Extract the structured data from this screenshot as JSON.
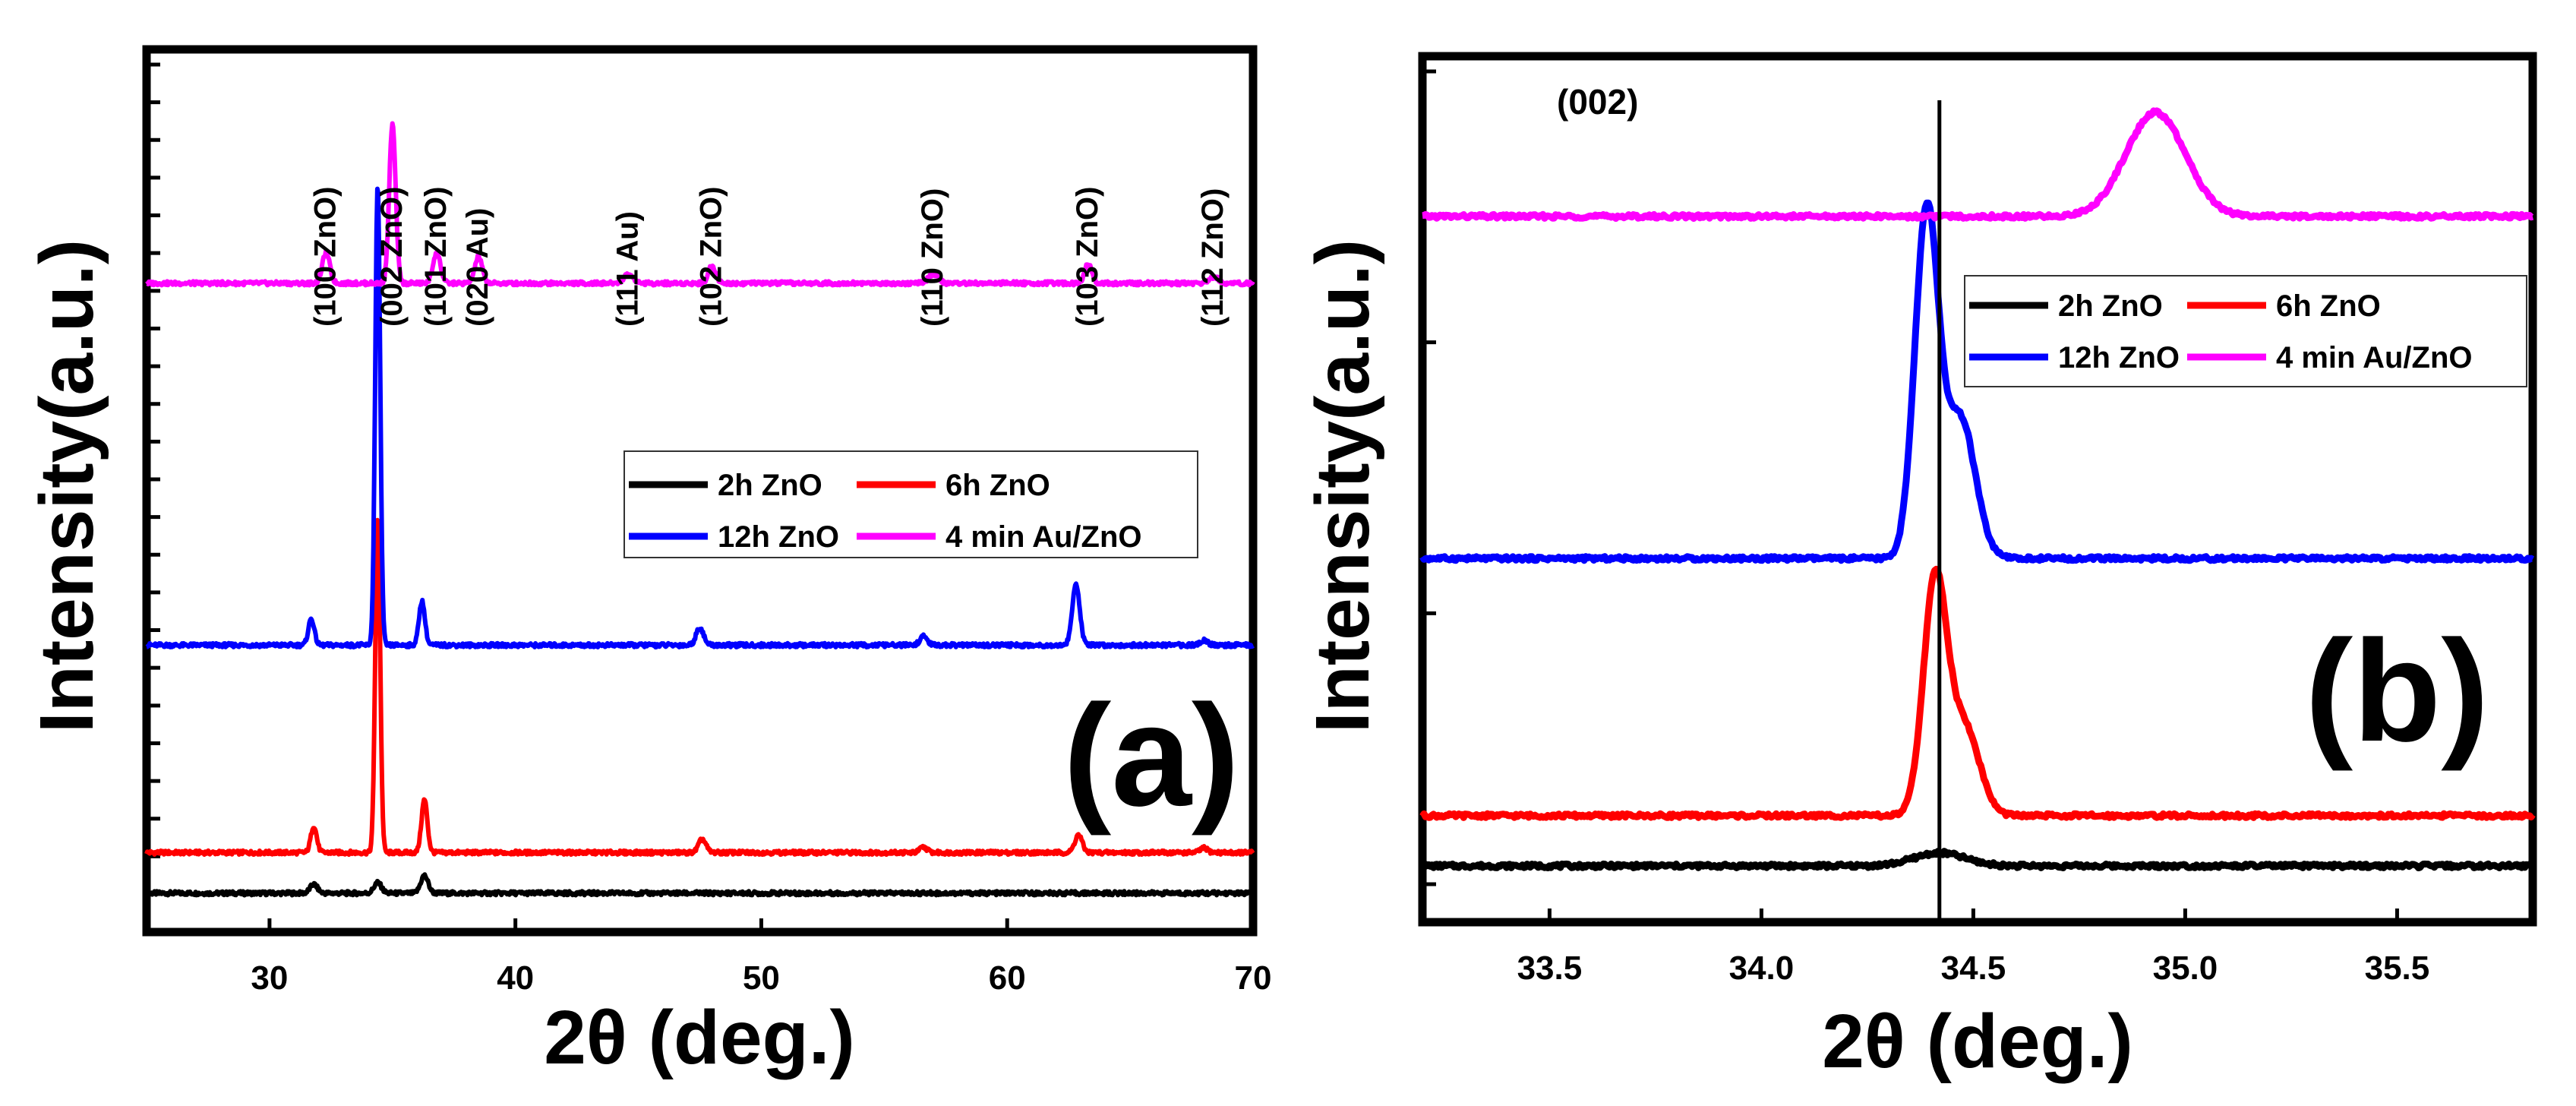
{
  "chart_data": [
    {
      "type": "line",
      "panel_label": "(a)",
      "xlabel": "2θ (deg.)",
      "ylabel": "Intensity(a.u.)",
      "xlim": [
        25,
        70
      ],
      "ylim": [
        0,
        100
      ],
      "xticks": [
        30,
        40,
        50,
        60,
        70
      ],
      "xtick_labels": [
        "30",
        "40",
        "50",
        "60",
        "70"
      ],
      "yticks_minor_count": 23,
      "series": [
        {
          "name": "2h ZnO",
          "color": "#000000",
          "baseline": 4.4,
          "peaks": [
            [
              31.8,
              1.0,
              0.15
            ],
            [
              34.4,
              1.2,
              0.15
            ],
            [
              36.3,
              2.0,
              0.15
            ]
          ]
        },
        {
          "name": "6h ZnO",
          "color": "#ff0000",
          "baseline": 9.0,
          "peaks": [
            [
              31.8,
              3.0,
              0.12
            ],
            [
              34.4,
              38.0,
              0.1
            ],
            [
              36.3,
              6.0,
              0.12
            ],
            [
              47.6,
              1.5,
              0.15
            ],
            [
              56.6,
              0.6,
              0.15
            ],
            [
              62.9,
              2.0,
              0.15
            ],
            [
              68.0,
              0.5,
              0.15
            ]
          ]
        },
        {
          "name": "12h ZnO",
          "color": "#0000ff",
          "baseline": 32.5,
          "peaks": [
            [
              31.7,
              3.0,
              0.12
            ],
            [
              34.4,
              52.0,
              0.1
            ],
            [
              36.2,
              5.0,
              0.12
            ],
            [
              47.5,
              2.0,
              0.15
            ],
            [
              56.6,
              1.0,
              0.15
            ],
            [
              62.8,
              7.0,
              0.15
            ],
            [
              68.0,
              0.6,
              0.15
            ]
          ]
        },
        {
          "name": "4 min Au/ZnO",
          "color": "#ff00ff",
          "baseline": 73.5,
          "peaks": [
            [
              32.3,
              3.5,
              0.15
            ],
            [
              35.0,
              18.0,
              0.13
            ],
            [
              36.8,
              3.5,
              0.15
            ],
            [
              38.5,
              3.0,
              0.15
            ],
            [
              44.6,
              1.0,
              0.2
            ],
            [
              48.0,
              2.0,
              0.15
            ],
            [
              57.0,
              1.0,
              0.2
            ],
            [
              63.3,
              2.2,
              0.15
            ],
            [
              68.4,
              0.7,
              0.2
            ]
          ]
        }
      ],
      "annotations": [
        {
          "text": "(100 ZnO)",
          "x": 32.3
        },
        {
          "text": "(002 ZnO)",
          "x": 35.0
        },
        {
          "text": "(101 ZnO)",
          "x": 36.8
        },
        {
          "text": "(020 Au)",
          "x": 38.5
        },
        {
          "text": "(111 Au)",
          "x": 44.6
        },
        {
          "text": "(102 ZnO)",
          "x": 48.0
        },
        {
          "text": "(110 ZnO)",
          "x": 57.0
        },
        {
          "text": "(103 ZnO)",
          "x": 63.3
        },
        {
          "text": "(112 ZnO)",
          "x": 68.4
        }
      ],
      "legend_location": "center-right"
    },
    {
      "type": "line",
      "panel_label": "(b)",
      "corner_label": "(002)",
      "xlabel": "2θ (deg.)",
      "ylabel": "Intensity(a.u.)",
      "xlim": [
        33.2,
        35.82
      ],
      "ylim": [
        0,
        100
      ],
      "xticks": [
        33.5,
        34.0,
        34.5,
        35.0,
        35.5
      ],
      "xtick_labels": [
        "33.5",
        "34.0",
        "34.5",
        "35.0",
        "35.5"
      ],
      "yticks_minor_count": 4,
      "reference_line_x": 34.42,
      "series": [
        {
          "name": "2h ZnO",
          "color": "#000000",
          "baseline": 6.5,
          "peaks": [
            [
              34.42,
              1.5,
              0.06
            ]
          ]
        },
        {
          "name": "6h ZnO",
          "color": "#ff0000",
          "baseline": 12.3,
          "peaks": [
            [
              34.41,
              27.0,
              0.028
            ],
            [
              34.48,
              10.0,
              0.035
            ]
          ]
        },
        {
          "name": "12h ZnO",
          "color": "#0000ff",
          "baseline": 42.0,
          "peaks": [
            [
              34.39,
              40.0,
              0.028
            ],
            [
              34.47,
              16.0,
              0.035
            ]
          ]
        },
        {
          "name": "4 min Au/ZnO",
          "color": "#ff00ff",
          "baseline": 81.5,
          "peaks": [
            [
              34.93,
              12.0,
              0.07
            ]
          ]
        }
      ],
      "legend_location": "top-right"
    }
  ]
}
